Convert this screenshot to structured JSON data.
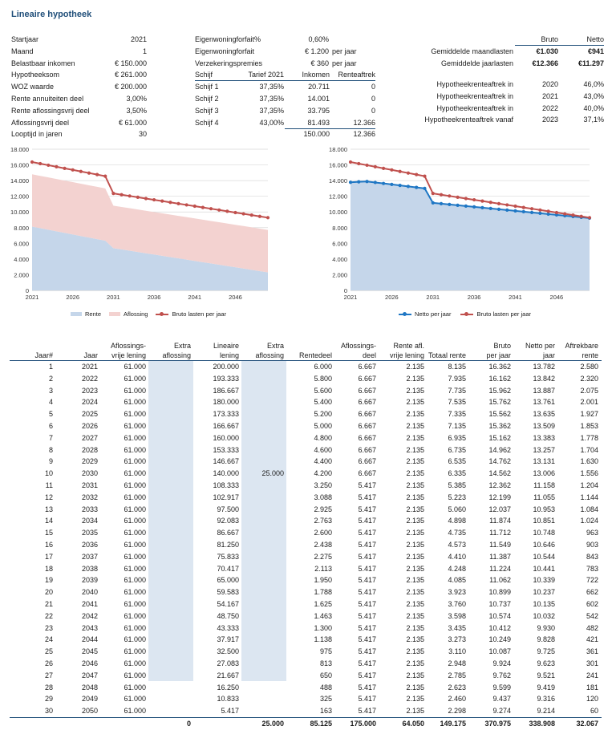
{
  "title": "Lineaire hypotheek",
  "inputs": [
    {
      "label": "Startjaar",
      "value": "2021"
    },
    {
      "label": "Maand",
      "value": "1"
    },
    {
      "label": "Belastbaar inkomen",
      "value": "€ 150.000"
    },
    {
      "label": "Hypotheeksom",
      "value": "€ 261.000"
    },
    {
      "label": "WOZ waarde",
      "value": "€ 200.000"
    },
    {
      "label": "Rente annuiteiten deel",
      "value": "3,00%"
    },
    {
      "label": "Rente aflossingsvrij deel",
      "value": "3,50%"
    },
    {
      "label": "Aflossingsvrij deel",
      "value": "€ 61.000"
    },
    {
      "label": "Looptijd in jaren",
      "value": "30"
    }
  ],
  "eigenwoning": [
    {
      "label": "Eigenwoningforfait%",
      "value": "0,60%",
      "unit": ""
    },
    {
      "label": "Eigenwoningforfait",
      "value": "€ 1.200",
      "unit": "per jaar"
    },
    {
      "label": "Verzekeringspremies",
      "value": "€ 360",
      "unit": "per jaar"
    }
  ],
  "schijf_header": {
    "c1": "Schijf",
    "c2": "Tarief 2021",
    "c3": "Inkomen",
    "c4": "Renteaftrek"
  },
  "schijven": [
    {
      "name": "Schijf 1",
      "tarief": "37,35%",
      "inkomen": "20.711",
      "aftrek": "0"
    },
    {
      "name": "Schijf 2",
      "tarief": "37,35%",
      "inkomen": "14.001",
      "aftrek": "0"
    },
    {
      "name": "Schijf 3",
      "tarief": "37,35%",
      "inkomen": "33.795",
      "aftrek": "0"
    },
    {
      "name": "Schijf 4",
      "tarief": "43,00%",
      "inkomen": "81.493",
      "aftrek": "12.366"
    }
  ],
  "schijf_totals": {
    "inkomen": "150.000",
    "aftrek": "12.366"
  },
  "lasten": {
    "col_bruto": "Bruto",
    "col_netto": "Netto",
    "maand_label": "Gemiddelde maandlasten",
    "maand_bruto": "€1.030",
    "maand_netto": "€941",
    "jaar_label": "Gemiddelde jaarlasten",
    "jaar_bruto": "€12.366",
    "jaar_netto": "€11.297"
  },
  "renteaftrek": [
    {
      "label": "Hypotheekrenteaftrek in",
      "year": "2020",
      "pct": "46,0%"
    },
    {
      "label": "Hypotheekrenteaftrek in",
      "year": "2021",
      "pct": "43,0%"
    },
    {
      "label": "Hypotheekrenteaftrek in",
      "year": "2022",
      "pct": "40,0%"
    },
    {
      "label": "Hypotheekrenteaftrek vanaf",
      "year": "2023",
      "pct": "37,1%"
    }
  ],
  "colors": {
    "rente_fill": "#c5d6ea",
    "aflossing_fill": "#f3d2d0",
    "bruto_line": "#c0504d",
    "netto_line": "#1f77c4",
    "accent": "#1f4e79"
  },
  "chart_data": [
    {
      "type": "area",
      "x": [
        2021,
        2022,
        2023,
        2024,
        2025,
        2026,
        2027,
        2028,
        2029,
        2030,
        2031,
        2032,
        2033,
        2034,
        2035,
        2036,
        2037,
        2038,
        2039,
        2040,
        2041,
        2042,
        2043,
        2044,
        2045,
        2046,
        2047,
        2048,
        2049,
        2050
      ],
      "ylim": [
        0,
        18000
      ],
      "yticks": [
        "0",
        "2.000",
        "4.000",
        "6.000",
        "8.000",
        "10.000",
        "12.000",
        "14.000",
        "16.000",
        "18.000"
      ],
      "xticks": [
        "2021",
        "2026",
        "2031",
        "2036",
        "2041",
        "2046"
      ],
      "grid": true,
      "legend_position": "bottom",
      "series": [
        {
          "name": "Rente",
          "kind": "area",
          "values": [
            8135,
            7935,
            7735,
            7535,
            7335,
            7135,
            6935,
            6735,
            6535,
            6335,
            5385,
            5223,
            5060,
            4898,
            4735,
            4573,
            4410,
            4248,
            4085,
            3923,
            3760,
            3598,
            3435,
            3273,
            3110,
            2948,
            2785,
            2623,
            2460,
            2298
          ]
        },
        {
          "name": "Aflossing",
          "kind": "area",
          "values": [
            6667,
            6667,
            6667,
            6667,
            6667,
            6667,
            6667,
            6667,
            6667,
            6667,
            5417,
            5417,
            5417,
            5417,
            5417,
            5417,
            5417,
            5417,
            5417,
            5417,
            5417,
            5417,
            5417,
            5417,
            5417,
            5417,
            5417,
            5417,
            5417,
            5417
          ]
        },
        {
          "name": "Bruto lasten per jaar",
          "kind": "line",
          "values": [
            16362,
            16162,
            15962,
            15762,
            15562,
            15362,
            15162,
            14962,
            14762,
            14562,
            12362,
            12199,
            12037,
            11874,
            11712,
            11549,
            11387,
            11224,
            11062,
            10899,
            10737,
            10574,
            10412,
            10249,
            10087,
            9924,
            9762,
            9599,
            9437,
            9274
          ]
        }
      ]
    },
    {
      "type": "line",
      "x": [
        2021,
        2022,
        2023,
        2024,
        2025,
        2026,
        2027,
        2028,
        2029,
        2030,
        2031,
        2032,
        2033,
        2034,
        2035,
        2036,
        2037,
        2038,
        2039,
        2040,
        2041,
        2042,
        2043,
        2044,
        2045,
        2046,
        2047,
        2048,
        2049,
        2050
      ],
      "ylim": [
        0,
        18000
      ],
      "yticks": [
        "0",
        "2.000",
        "4.000",
        "6.000",
        "8.000",
        "10.000",
        "12.000",
        "14.000",
        "16.000",
        "18.000"
      ],
      "xticks": [
        "2021",
        "2026",
        "2031",
        "2036",
        "2041",
        "2046"
      ],
      "grid": true,
      "legend_position": "bottom",
      "series": [
        {
          "name": "Netto per jaar",
          "kind": "line-filled",
          "values": [
            13782,
            13842,
            13887,
            13761,
            13635,
            13509,
            13383,
            13257,
            13131,
            13006,
            11158,
            11055,
            10953,
            10851,
            10748,
            10646,
            10544,
            10441,
            10339,
            10237,
            10135,
            10032,
            9930,
            9828,
            9725,
            9623,
            9521,
            9419,
            9316,
            9214
          ]
        },
        {
          "name": "Bruto lasten per jaar",
          "kind": "line",
          "values": [
            16362,
            16162,
            15962,
            15762,
            15562,
            15362,
            15162,
            14962,
            14762,
            14562,
            12362,
            12199,
            12037,
            11874,
            11712,
            11549,
            11387,
            11224,
            11062,
            10899,
            10737,
            10574,
            10412,
            10249,
            10087,
            9924,
            9762,
            9599,
            9437,
            9274
          ]
        }
      ]
    }
  ],
  "table": {
    "headers": [
      [
        "",
        "Jaar#"
      ],
      [
        "",
        "Jaar"
      ],
      [
        "Aflossings-",
        "vrije lening"
      ],
      [
        "Extra",
        "aflossing"
      ],
      [
        "Lineaire",
        "lening"
      ],
      [
        "Extra",
        "aflossing"
      ],
      [
        "",
        "Rentedeel"
      ],
      [
        "Aflossings-",
        "deel"
      ],
      [
        "Rente afl.",
        "vrije lening"
      ],
      [
        "",
        "Totaal rente"
      ],
      [
        "Bruto",
        "per jaar"
      ],
      [
        "Netto per",
        "jaar"
      ],
      [
        "Aftrekbare",
        "rente"
      ]
    ],
    "rows": [
      [
        "1",
        "2021",
        "61.000",
        "",
        "200.000",
        "",
        "6.000",
        "6.667",
        "2.135",
        "8.135",
        "16.362",
        "13.782",
        "2.580"
      ],
      [
        "2",
        "2022",
        "61.000",
        "",
        "193.333",
        "",
        "5.800",
        "6.667",
        "2.135",
        "7.935",
        "16.162",
        "13.842",
        "2.320"
      ],
      [
        "3",
        "2023",
        "61.000",
        "",
        "186.667",
        "",
        "5.600",
        "6.667",
        "2.135",
        "7.735",
        "15.962",
        "13.887",
        "2.075"
      ],
      [
        "4",
        "2024",
        "61.000",
        "",
        "180.000",
        "",
        "5.400",
        "6.667",
        "2.135",
        "7.535",
        "15.762",
        "13.761",
        "2.001"
      ],
      [
        "5",
        "2025",
        "61.000",
        "",
        "173.333",
        "",
        "5.200",
        "6.667",
        "2.135",
        "7.335",
        "15.562",
        "13.635",
        "1.927"
      ],
      [
        "6",
        "2026",
        "61.000",
        "",
        "166.667",
        "",
        "5.000",
        "6.667",
        "2.135",
        "7.135",
        "15.362",
        "13.509",
        "1.853"
      ],
      [
        "7",
        "2027",
        "61.000",
        "",
        "160.000",
        "",
        "4.800",
        "6.667",
        "2.135",
        "6.935",
        "15.162",
        "13.383",
        "1.778"
      ],
      [
        "8",
        "2028",
        "61.000",
        "",
        "153.333",
        "",
        "4.600",
        "6.667",
        "2.135",
        "6.735",
        "14.962",
        "13.257",
        "1.704"
      ],
      [
        "9",
        "2029",
        "61.000",
        "",
        "146.667",
        "",
        "4.400",
        "6.667",
        "2.135",
        "6.535",
        "14.762",
        "13.131",
        "1.630"
      ],
      [
        "10",
        "2030",
        "61.000",
        "",
        "140.000",
        "25.000",
        "4.200",
        "6.667",
        "2.135",
        "6.335",
        "14.562",
        "13.006",
        "1.556"
      ],
      [
        "11",
        "2031",
        "61.000",
        "",
        "108.333",
        "",
        "3.250",
        "5.417",
        "2.135",
        "5.385",
        "12.362",
        "11.158",
        "1.204"
      ],
      [
        "12",
        "2032",
        "61.000",
        "",
        "102.917",
        "",
        "3.088",
        "5.417",
        "2.135",
        "5.223",
        "12.199",
        "11.055",
        "1.144"
      ],
      [
        "13",
        "2033",
        "61.000",
        "",
        "97.500",
        "",
        "2.925",
        "5.417",
        "2.135",
        "5.060",
        "12.037",
        "10.953",
        "1.084"
      ],
      [
        "14",
        "2034",
        "61.000",
        "",
        "92.083",
        "",
        "2.763",
        "5.417",
        "2.135",
        "4.898",
        "11.874",
        "10.851",
        "1.024"
      ],
      [
        "15",
        "2035",
        "61.000",
        "",
        "86.667",
        "",
        "2.600",
        "5.417",
        "2.135",
        "4.735",
        "11.712",
        "10.748",
        "963"
      ],
      [
        "16",
        "2036",
        "61.000",
        "",
        "81.250",
        "",
        "2.438",
        "5.417",
        "2.135",
        "4.573",
        "11.549",
        "10.646",
        "903"
      ],
      [
        "17",
        "2037",
        "61.000",
        "",
        "75.833",
        "",
        "2.275",
        "5.417",
        "2.135",
        "4.410",
        "11.387",
        "10.544",
        "843"
      ],
      [
        "18",
        "2038",
        "61.000",
        "",
        "70.417",
        "",
        "2.113",
        "5.417",
        "2.135",
        "4.248",
        "11.224",
        "10.441",
        "783"
      ],
      [
        "19",
        "2039",
        "61.000",
        "",
        "65.000",
        "",
        "1.950",
        "5.417",
        "2.135",
        "4.085",
        "11.062",
        "10.339",
        "722"
      ],
      [
        "20",
        "2040",
        "61.000",
        "",
        "59.583",
        "",
        "1.788",
        "5.417",
        "2.135",
        "3.923",
        "10.899",
        "10.237",
        "662"
      ],
      [
        "21",
        "2041",
        "61.000",
        "",
        "54.167",
        "",
        "1.625",
        "5.417",
        "2.135",
        "3.760",
        "10.737",
        "10.135",
        "602"
      ],
      [
        "22",
        "2042",
        "61.000",
        "",
        "48.750",
        "",
        "1.463",
        "5.417",
        "2.135",
        "3.598",
        "10.574",
        "10.032",
        "542"
      ],
      [
        "23",
        "2043",
        "61.000",
        "",
        "43.333",
        "",
        "1.300",
        "5.417",
        "2.135",
        "3.435",
        "10.412",
        "9.930",
        "482"
      ],
      [
        "24",
        "2044",
        "61.000",
        "",
        "37.917",
        "",
        "1.138",
        "5.417",
        "2.135",
        "3.273",
        "10.249",
        "9.828",
        "421"
      ],
      [
        "25",
        "2045",
        "61.000",
        "",
        "32.500",
        "",
        "975",
        "5.417",
        "2.135",
        "3.110",
        "10.087",
        "9.725",
        "361"
      ],
      [
        "26",
        "2046",
        "61.000",
        "",
        "27.083",
        "",
        "813",
        "5.417",
        "2.135",
        "2.948",
        "9.924",
        "9.623",
        "301"
      ],
      [
        "27",
        "2047",
        "61.000",
        "",
        "21.667",
        "",
        "650",
        "5.417",
        "2.135",
        "2.785",
        "9.762",
        "9.521",
        "241"
      ],
      [
        "28",
        "2048",
        "61.000",
        "",
        "16.250",
        "",
        "488",
        "5.417",
        "2.135",
        "2.623",
        "9.599",
        "9.419",
        "181"
      ],
      [
        "29",
        "2049",
        "61.000",
        "",
        "10.833",
        "",
        "325",
        "5.417",
        "2.135",
        "2.460",
        "9.437",
        "9.316",
        "120"
      ],
      [
        "30",
        "2050",
        "61.000",
        "",
        "5.417",
        "",
        "163",
        "5.417",
        "2.135",
        "2.298",
        "9.274",
        "9.214",
        "60"
      ]
    ],
    "totals": [
      "",
      "",
      "",
      "0",
      "",
      "25.000",
      "85.125",
      "175.000",
      "64.050",
      "149.175",
      "370.975",
      "338.908",
      "32.067"
    ]
  }
}
